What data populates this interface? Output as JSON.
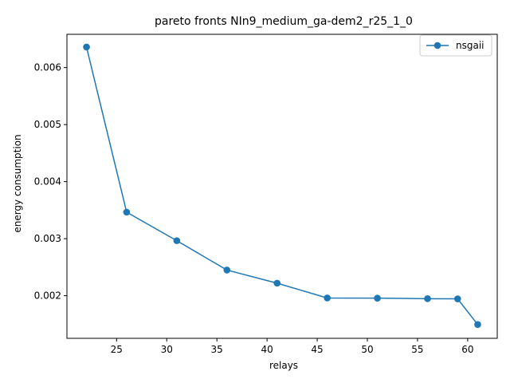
{
  "chart_data": {
    "type": "line",
    "title": "pareto fronts NIn9_medium_ga-dem2_r25_1_0",
    "xlabel": "relays",
    "ylabel": "energy consumption",
    "xlim": [
      20.05,
      62.95
    ],
    "ylim": [
      0.001253,
      0.006583
    ],
    "x_ticks": [
      25,
      30,
      35,
      40,
      45,
      50,
      55,
      60
    ],
    "x_tick_labels": [
      "25",
      "30",
      "35",
      "40",
      "45",
      "50",
      "55",
      "60"
    ],
    "y_ticks": [
      0.002,
      0.003,
      0.004,
      0.005,
      0.006
    ],
    "y_tick_labels": [
      "0.002",
      "0.003",
      "0.004",
      "0.005",
      "0.006"
    ],
    "grid": false,
    "legend_position": "top-right",
    "series": [
      {
        "name": "nsgaii",
        "color": "#1f77b4",
        "marker": "circle",
        "x": [
          22,
          26,
          31,
          36,
          41,
          46,
          51,
          56,
          59,
          61
        ],
        "y": [
          0.00636,
          0.003465,
          0.002965,
          0.00245,
          0.00222,
          0.00196,
          0.001957,
          0.001948,
          0.001945,
          0.001495
        ]
      }
    ]
  }
}
